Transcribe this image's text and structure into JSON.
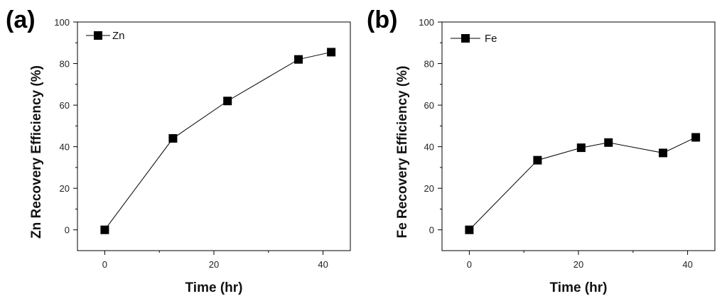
{
  "chart_data": [
    {
      "type": "line",
      "panel_label": "(a)",
      "xlabel": "Time (hr)",
      "ylabel": "Zn Recovery Efficiency (%)",
      "xlim": [
        -5,
        45
      ],
      "ylim": [
        -10,
        100
      ],
      "xticks": [
        0,
        20,
        40
      ],
      "yticks": [
        0,
        20,
        40,
        60,
        80,
        100
      ],
      "grid": false,
      "legend_position": "top-left",
      "series": [
        {
          "name": "Zn",
          "marker": "square",
          "color": "#000000",
          "x": [
            0,
            12.5,
            22.5,
            35.5,
            41.5
          ],
          "y": [
            0,
            44,
            62,
            82,
            85.5
          ]
        }
      ]
    },
    {
      "type": "line",
      "panel_label": "(b)",
      "xlabel": "Time (hr)",
      "ylabel": "Fe Recovery Efficiency (%)",
      "xlim": [
        -5,
        45
      ],
      "ylim": [
        -10,
        100
      ],
      "xticks": [
        0,
        20,
        40
      ],
      "yticks": [
        0,
        20,
        40,
        60,
        80,
        100
      ],
      "grid": false,
      "legend_position": "top-left",
      "series": [
        {
          "name": "Fe",
          "marker": "square",
          "color": "#000000",
          "x": [
            0,
            12.5,
            20.5,
            25.5,
            35.5,
            41.5
          ],
          "y": [
            0,
            33.5,
            39.5,
            42,
            37,
            44.5
          ]
        }
      ]
    }
  ]
}
